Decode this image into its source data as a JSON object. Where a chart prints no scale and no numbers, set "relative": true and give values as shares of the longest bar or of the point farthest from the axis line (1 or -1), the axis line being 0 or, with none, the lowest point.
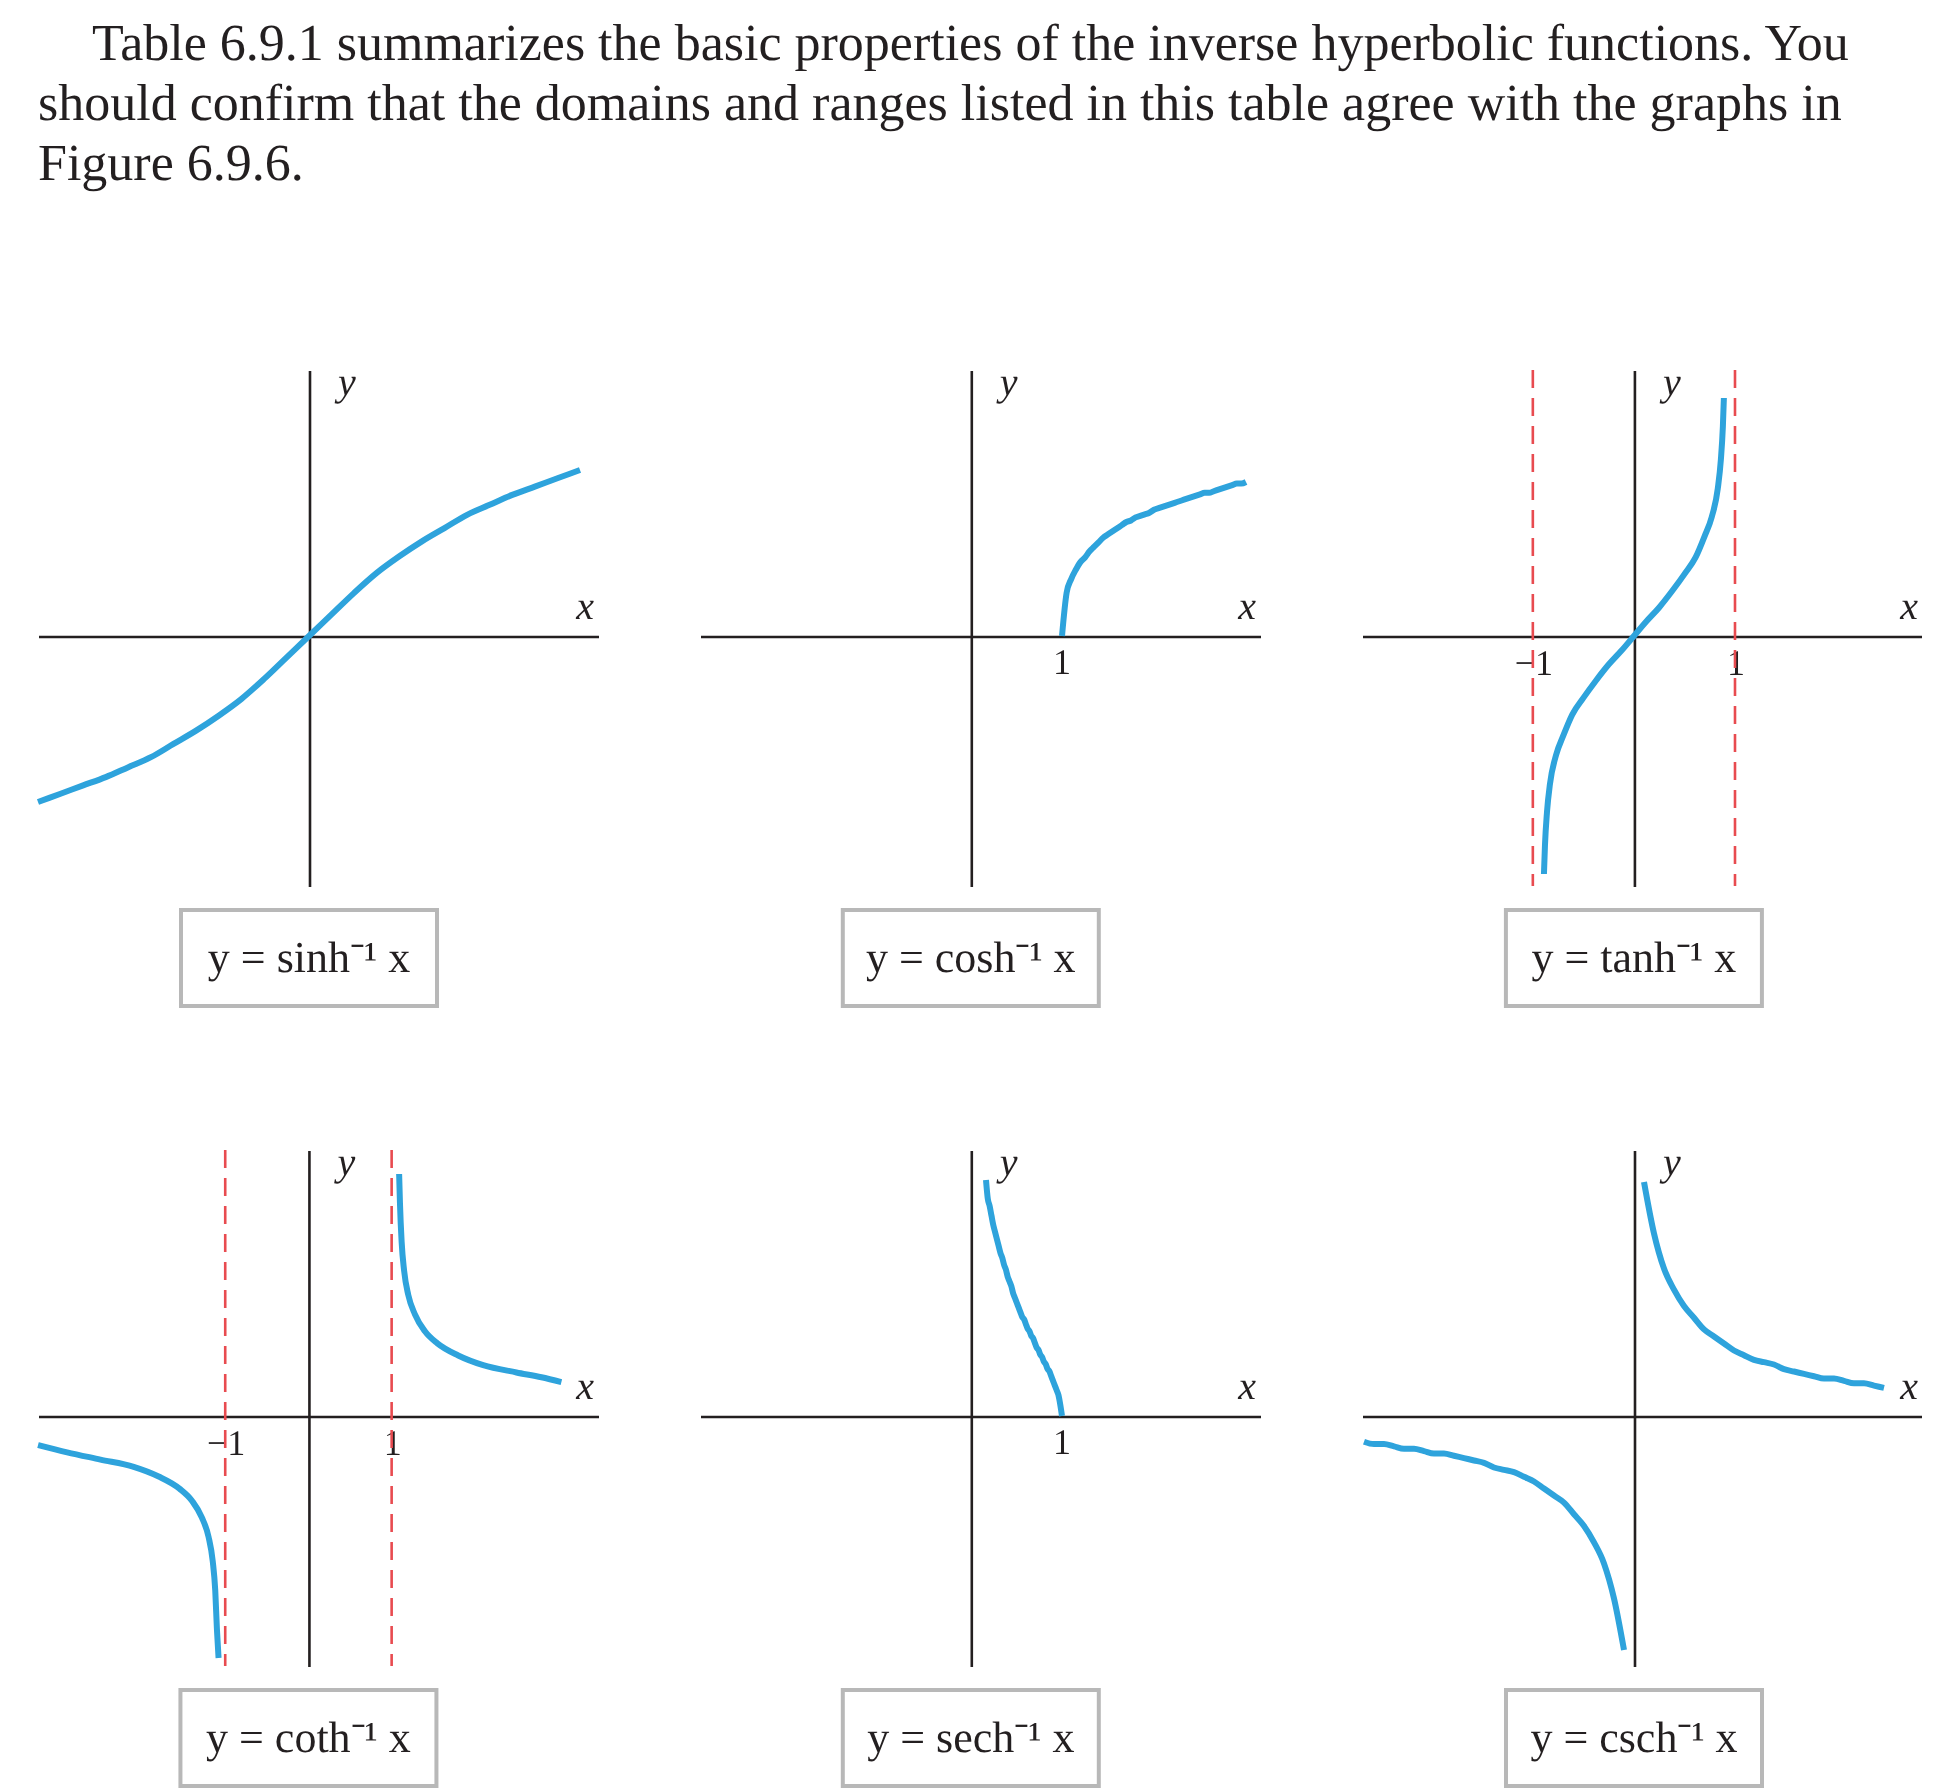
{
  "chart_data": [
    {
      "type": "other",
      "annotations": [
        "Table 6.9.1 summarizes the basic properties of the inverse hyperbolic functions. You should confirm that the domains and ranges listed in this table agree with the graphs in Figure 6.9.6."
      ]
    },
    {
      "type": "line",
      "relative": true,
      "title": "y = sinh⁻¹ x",
      "xlabel": "x",
      "ylabel": "y",
      "categories": [
        null,
        null,
        null,
        null,
        null,
        null,
        null,
        null,
        null,
        null,
        null,
        null,
        null,
        null,
        null,
        null,
        null,
        null,
        null,
        null,
        null,
        null,
        null,
        null,
        null
      ],
      "series": [
        {
          "color": "#2ea3dc",
          "values": [
            -1,
            -0.95,
            -0.9,
            -0.85,
            -0.79,
            -0.73,
            -0.65,
            -0.57,
            -0.48,
            -0.38,
            -0.26,
            -0.13,
            0,
            0.13,
            0.26,
            0.38,
            0.48,
            0.57,
            0.65,
            0.73,
            0.79,
            0.85,
            0.9,
            0.95,
            1
          ]
        }
      ]
    },
    {
      "type": "line",
      "relative": true,
      "title": "y = cosh⁻¹ x",
      "xlabel": "x",
      "ylabel": "y",
      "annotations": [
        {
          "text": "1",
          "y": 0
        }
      ],
      "categories": [
        null,
        null,
        null,
        null,
        null,
        null,
        null,
        null,
        null,
        null,
        null,
        null,
        null,
        null,
        null,
        null,
        null,
        null,
        null,
        null,
        null,
        null,
        null,
        null,
        null,
        null,
        null,
        null,
        null,
        null,
        null,
        null,
        null,
        null,
        null,
        null,
        null,
        null,
        null,
        null,
        null
      ],
      "series": [
        {
          "color": "#2ea3dc",
          "values": [
            0,
            0.28,
            0.37,
            0.43,
            0.48,
            0.51,
            0.55,
            0.58,
            0.61,
            0.64,
            0.66,
            0.68,
            0.7,
            0.72,
            0.74,
            0.75,
            0.77,
            0.78,
            0.79,
            0.8,
            0.82,
            0.83,
            0.84,
            0.85,
            0.86,
            0.87,
            0.88,
            0.89,
            0.9,
            0.91,
            0.92,
            0.93,
            0.93,
            0.94,
            0.95,
            0.96,
            0.97,
            0.98,
            0.99,
            0.99,
            1
          ]
        }
      ]
    },
    {
      "type": "line",
      "relative": true,
      "title": "y = tanh⁻¹ x",
      "xlabel": "x",
      "ylabel": "y",
      "xlim": [
        -2.69,
        2.85
      ],
      "xticks": [
        {
          "value": -1,
          "label": "−1"
        },
        1
      ],
      "ref_lines": [
        {
          "axis": "x",
          "value": -1,
          "color": "#e84b50",
          "line_style": "dashed"
        },
        {
          "axis": "x",
          "value": 1,
          "color": "#e84b50",
          "line_style": "dashed"
        }
      ],
      "series": [
        {
          "color": "#2ea3dc",
          "x": [
            -0.89,
            -0.88,
            -0.86,
            -0.83,
            -0.77,
            -0.7,
            -0.61,
            -0.5,
            -0.38,
            -0.25,
            -0.12,
            0,
            0.12,
            0.25,
            0.38,
            0.5,
            0.61,
            0.7,
            0.77,
            0.83,
            0.86,
            0.88,
            0.89
          ],
          "values": [
            -1,
            -0.88,
            -0.74,
            -0.62,
            -0.5,
            -0.42,
            -0.33,
            -0.26,
            -0.19,
            -0.12,
            -0.06,
            0,
            0.06,
            0.12,
            0.19,
            0.26,
            0.33,
            0.42,
            0.5,
            0.62,
            0.74,
            0.88,
            1
          ]
        }
      ]
    },
    {
      "type": "line",
      "relative": true,
      "title": "y = coth⁻¹ x",
      "xlabel": "x",
      "ylabel": "y",
      "xlim": [
        -3.25,
        3.48
      ],
      "xticks": [
        {
          "value": -1,
          "label": "−1"
        },
        1
      ],
      "ref_lines": [
        {
          "axis": "x",
          "value": -1,
          "color": "#e84b50",
          "line_style": "dashed"
        },
        {
          "axis": "x",
          "value": 1,
          "color": "#e84b50",
          "line_style": "dashed"
        }
      ],
      "series": [
        {
          "color": "#2ea3dc",
          "x": [
            -3.25,
            -2.9,
            -2.5,
            -2.1,
            -1.8,
            -1.55,
            -1.4,
            -1.28,
            -1.2,
            -1.15,
            -1.12,
            -1.1,
            -1.08
          ],
          "values": [
            -0.12,
            -0.15,
            -0.18,
            -0.21,
            -0.25,
            -0.3,
            -0.35,
            -0.42,
            -0.5,
            -0.6,
            -0.72,
            -0.88,
            -1
          ]
        },
        {
          "color": "#2ea3dc",
          "x": [
            1.09,
            1.1,
            1.12,
            1.15,
            1.2,
            1.28,
            1.4,
            1.55,
            1.8,
            2.1,
            2.5,
            2.8,
            3.04
          ],
          "values": [
            1,
            0.88,
            0.72,
            0.6,
            0.5,
            0.42,
            0.35,
            0.3,
            0.25,
            0.21,
            0.18,
            0.16,
            0.14
          ]
        }
      ]
    },
    {
      "type": "line",
      "relative": true,
      "title": "y = sech⁻¹ x",
      "xlabel": "x",
      "ylabel": "y",
      "annotations": [
        {
          "text": "1",
          "y": 0
        }
      ],
      "categories": [
        null,
        null,
        null,
        null,
        null,
        null,
        null,
        null,
        null,
        null,
        null,
        null,
        null,
        null,
        null,
        null,
        null,
        null,
        null,
        null,
        null,
        null,
        null,
        null,
        null,
        null,
        null,
        null,
        null,
        null,
        null,
        null,
        null,
        null,
        null,
        null,
        null,
        null,
        null,
        null,
        null,
        null,
        null
      ],
      "series": [
        {
          "color": "#2ea3dc",
          "values": [
            1,
            0.92,
            0.89,
            0.85,
            0.81,
            0.78,
            0.75,
            0.72,
            0.69,
            0.67,
            0.64,
            0.62,
            0.59,
            0.57,
            0.55,
            0.52,
            0.5,
            0.48,
            0.46,
            0.44,
            0.42,
            0.41,
            0.39,
            0.37,
            0.36,
            0.34,
            0.33,
            0.31,
            0.29,
            0.28,
            0.26,
            0.25,
            0.23,
            0.22,
            0.2,
            0.19,
            0.17,
            0.15,
            0.13,
            0.11,
            0.09,
            0.05,
            0
          ]
        }
      ]
    },
    {
      "type": "line",
      "relative": true,
      "title": "y = csch⁻¹ x",
      "xlabel": "x",
      "ylabel": "y",
      "categories": [
        null,
        null,
        null,
        null,
        null,
        null,
        null,
        null,
        null,
        null,
        null,
        null,
        null,
        null,
        null,
        null,
        null,
        null,
        null,
        null,
        null,
        null,
        null,
        null,
        null,
        null,
        null,
        null,
        null,
        null,
        null,
        null,
        null,
        null,
        null,
        null,
        null,
        null,
        null,
        null,
        null,
        null,
        null,
        null,
        null,
        null,
        null,
        null,
        null,
        null,
        null,
        null,
        null
      ],
      "series": [
        {
          "color": "#2ea3dc",
          "values": [
            -0.11,
            -0.12,
            -0.12,
            -0.13,
            -0.14,
            -0.14,
            -0.15,
            -0.16,
            -0.16,
            -0.17,
            -0.18,
            -0.19,
            -0.2,
            -0.22,
            -0.23,
            -0.24,
            -0.26,
            -0.28,
            -0.31,
            -0.34,
            -0.37,
            -0.42,
            -0.47,
            -0.54,
            -0.63,
            -0.78,
            -1,
            null,
            null,
            null,
            null,
            null,
            null,
            null,
            null,
            null,
            null,
            null,
            null,
            null,
            null,
            null,
            null,
            null,
            null,
            null,
            null,
            null,
            null,
            null,
            null,
            null,
            null
          ]
        },
        {
          "color": "#2ea3dc",
          "values": [
            null,
            null,
            null,
            null,
            null,
            null,
            null,
            null,
            null,
            null,
            null,
            null,
            null,
            null,
            null,
            null,
            null,
            null,
            null,
            null,
            null,
            null,
            null,
            null,
            null,
            null,
            null,
            null,
            1,
            0.78,
            0.63,
            0.54,
            0.47,
            0.42,
            0.37,
            0.34,
            0.31,
            0.28,
            0.26,
            0.24,
            0.23,
            0.22,
            0.2,
            0.19,
            0.18,
            0.17,
            0.16,
            0.16,
            0.15,
            0.14,
            0.14,
            0.13,
            0.12
          ]
        }
      ]
    }
  ]
}
